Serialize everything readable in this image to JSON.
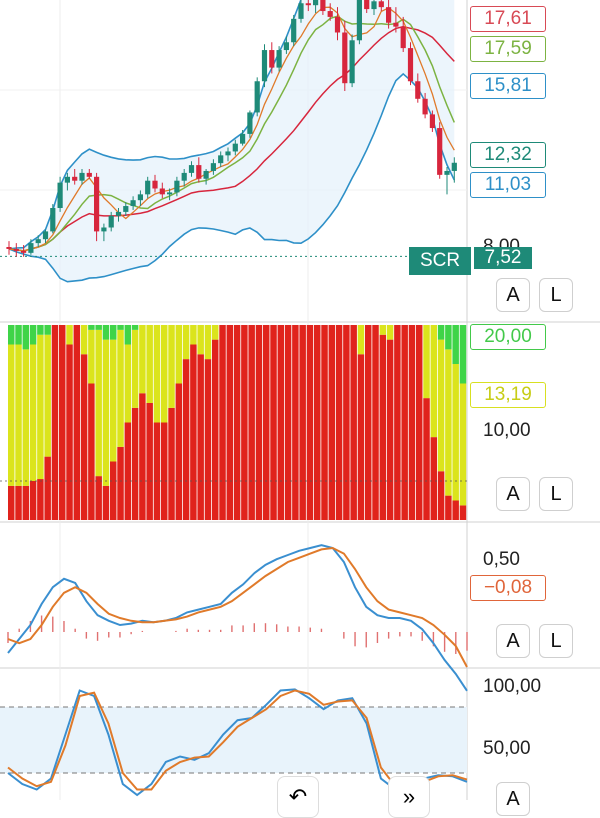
{
  "chart_data": [
    {
      "type": "candlestick",
      "title": "",
      "price_tags": [
        {
          "name": "tag-1761",
          "value": "17,61",
          "color": "#d84a55"
        },
        {
          "name": "tag-1759",
          "value": "17,59",
          "color": "#7cb342"
        },
        {
          "name": "tag-1581",
          "value": "15,81",
          "color": "#2e90c8"
        },
        {
          "name": "tag-1232",
          "value": "12,32",
          "color": "#1e8a78"
        },
        {
          "name": "tag-1103",
          "value": "11,03",
          "color": "#2e90c8"
        }
      ],
      "axis_tick_partial": "8,00",
      "scr_label": "SCR",
      "scr_value": "7,52",
      "last_close": 12.32,
      "candles": [
        {
          "o": 8.0,
          "h": 8.3,
          "l": 7.6,
          "c": 7.9
        },
        {
          "o": 7.9,
          "h": 8.2,
          "l": 7.5,
          "c": 7.8
        },
        {
          "o": 7.8,
          "h": 8.1,
          "l": 7.5,
          "c": 7.7
        },
        {
          "o": 7.7,
          "h": 8.4,
          "l": 7.6,
          "c": 8.2
        },
        {
          "o": 8.2,
          "h": 8.6,
          "l": 8.0,
          "c": 8.4
        },
        {
          "o": 8.4,
          "h": 8.9,
          "l": 8.2,
          "c": 8.8
        },
        {
          "o": 8.8,
          "h": 10.2,
          "l": 8.7,
          "c": 10.0
        },
        {
          "o": 10.0,
          "h": 11.6,
          "l": 9.8,
          "c": 11.3
        },
        {
          "o": 11.3,
          "h": 11.8,
          "l": 10.9,
          "c": 11.6
        },
        {
          "o": 11.6,
          "h": 12.0,
          "l": 11.2,
          "c": 11.4
        },
        {
          "o": 11.4,
          "h": 12.0,
          "l": 11.2,
          "c": 11.8
        },
        {
          "o": 11.8,
          "h": 12.0,
          "l": 11.5,
          "c": 11.6
        },
        {
          "o": 11.6,
          "h": 11.8,
          "l": 8.3,
          "c": 8.8
        },
        {
          "o": 8.8,
          "h": 9.2,
          "l": 8.3,
          "c": 9.0
        },
        {
          "o": 9.0,
          "h": 9.8,
          "l": 8.8,
          "c": 9.6
        },
        {
          "o": 9.6,
          "h": 10.0,
          "l": 9.3,
          "c": 9.8
        },
        {
          "o": 9.8,
          "h": 10.3,
          "l": 9.6,
          "c": 10.1
        },
        {
          "o": 10.1,
          "h": 10.6,
          "l": 9.9,
          "c": 10.4
        },
        {
          "o": 10.4,
          "h": 10.9,
          "l": 10.1,
          "c": 10.7
        },
        {
          "o": 10.7,
          "h": 11.6,
          "l": 10.5,
          "c": 11.4
        },
        {
          "o": 11.4,
          "h": 11.7,
          "l": 10.8,
          "c": 11.0
        },
        {
          "o": 11.0,
          "h": 11.3,
          "l": 10.5,
          "c": 10.7
        },
        {
          "o": 10.7,
          "h": 11.0,
          "l": 10.4,
          "c": 10.8
        },
        {
          "o": 10.8,
          "h": 11.6,
          "l": 10.6,
          "c": 11.4
        },
        {
          "o": 11.4,
          "h": 12.0,
          "l": 11.1,
          "c": 11.8
        },
        {
          "o": 11.8,
          "h": 12.4,
          "l": 11.6,
          "c": 12.2
        },
        {
          "o": 12.2,
          "h": 12.6,
          "l": 11.3,
          "c": 11.5
        },
        {
          "o": 11.5,
          "h": 12.0,
          "l": 11.2,
          "c": 11.9
        },
        {
          "o": 11.9,
          "h": 12.5,
          "l": 11.7,
          "c": 12.3
        },
        {
          "o": 12.3,
          "h": 12.9,
          "l": 12.1,
          "c": 12.7
        },
        {
          "o": 12.7,
          "h": 13.1,
          "l": 12.4,
          "c": 12.9
        },
        {
          "o": 12.9,
          "h": 13.5,
          "l": 12.7,
          "c": 13.3
        },
        {
          "o": 13.3,
          "h": 14.0,
          "l": 13.2,
          "c": 13.8
        },
        {
          "o": 13.8,
          "h": 15.0,
          "l": 13.6,
          "c": 14.9
        },
        {
          "o": 14.9,
          "h": 16.7,
          "l": 14.7,
          "c": 16.5
        },
        {
          "o": 16.5,
          "h": 18.4,
          "l": 16.2,
          "c": 18.1
        },
        {
          "o": 18.1,
          "h": 18.5,
          "l": 16.9,
          "c": 17.2
        },
        {
          "o": 17.2,
          "h": 18.3,
          "l": 17.0,
          "c": 18.1
        },
        {
          "o": 18.1,
          "h": 18.8,
          "l": 17.9,
          "c": 18.5
        },
        {
          "o": 18.5,
          "h": 19.9,
          "l": 18.3,
          "c": 19.7
        },
        {
          "o": 19.7,
          "h": 20.7,
          "l": 19.5,
          "c": 20.5
        },
        {
          "o": 20.5,
          "h": 20.8,
          "l": 20.1,
          "c": 20.4
        },
        {
          "o": 20.4,
          "h": 20.9,
          "l": 20.0,
          "c": 20.7
        },
        {
          "o": 20.7,
          "h": 20.9,
          "l": 19.9,
          "c": 20.1
        },
        {
          "o": 20.1,
          "h": 20.5,
          "l": 19.6,
          "c": 19.8
        },
        {
          "o": 19.8,
          "h": 20.3,
          "l": 18.6,
          "c": 19.0
        },
        {
          "o": 19.0,
          "h": 19.6,
          "l": 16.0,
          "c": 16.4
        },
        {
          "o": 16.4,
          "h": 18.9,
          "l": 16.2,
          "c": 18.6
        },
        {
          "o": 18.6,
          "h": 20.9,
          "l": 18.4,
          "c": 20.7
        },
        {
          "o": 20.7,
          "h": 20.9,
          "l": 20.0,
          "c": 20.2
        },
        {
          "o": 20.2,
          "h": 20.9,
          "l": 19.9,
          "c": 20.6
        },
        {
          "o": 20.6,
          "h": 20.8,
          "l": 20.1,
          "c": 20.3
        },
        {
          "o": 20.3,
          "h": 20.9,
          "l": 19.2,
          "c": 19.5
        },
        {
          "o": 19.5,
          "h": 20.3,
          "l": 19.0,
          "c": 19.3
        },
        {
          "o": 19.3,
          "h": 19.8,
          "l": 18.0,
          "c": 18.2
        },
        {
          "o": 18.2,
          "h": 18.5,
          "l": 16.3,
          "c": 16.5
        },
        {
          "o": 16.5,
          "h": 16.9,
          "l": 15.4,
          "c": 15.6
        },
        {
          "o": 15.6,
          "h": 15.9,
          "l": 14.6,
          "c": 14.8
        },
        {
          "o": 14.8,
          "h": 15.0,
          "l": 13.9,
          "c": 14.1
        },
        {
          "o": 14.1,
          "h": 14.4,
          "l": 11.5,
          "c": 11.7
        },
        {
          "o": 11.7,
          "h": 12.1,
          "l": 10.7,
          "c": 11.9
        },
        {
          "o": 11.9,
          "h": 12.6,
          "l": 11.3,
          "c": 12.32
        }
      ]
    },
    {
      "type": "stacked-bar",
      "tags": [
        {
          "name": "tag-2000",
          "value": "20,00",
          "color": "#43c94a"
        },
        {
          "name": "tag-1319",
          "value": "13,19",
          "color": "#d8e021"
        }
      ],
      "axis_label": "10,00",
      "series": [
        {
          "color": "#e0231c",
          "values": [
            3.5,
            3.5,
            3.5,
            4.0,
            4.2,
            6.5,
            20,
            20,
            18,
            20,
            17,
            14,
            4.5,
            3.5,
            6.0,
            7.5,
            10.0,
            11.5,
            13.0,
            12.0,
            10.0,
            10.0,
            11.5,
            14.0,
            16.5,
            18.0,
            17.0,
            16.5,
            18.5,
            20,
            20,
            20,
            20,
            20,
            20,
            20,
            20,
            20,
            20,
            20,
            20,
            20,
            20,
            20,
            20,
            20,
            20,
            20,
            17.0,
            20,
            20,
            19.0,
            18.5,
            20,
            20,
            20,
            20,
            12.5,
            8.5,
            5.0,
            2.5,
            2.0,
            1.5
          ]
        },
        {
          "color": "#dbe41c",
          "values": [
            14.5,
            14.5,
            14.0,
            14.0,
            14.8,
            12.5,
            0,
            0,
            2,
            0,
            3,
            5.5,
            15,
            15,
            12.5,
            12,
            8,
            8,
            7,
            8,
            10,
            10,
            8.5,
            6,
            3.5,
            2,
            3,
            3.5,
            1.5,
            0,
            0,
            0,
            0,
            0,
            0,
            0,
            0,
            0,
            0,
            0,
            0,
            0,
            0,
            0,
            0,
            0,
            0,
            0,
            3,
            0,
            0,
            1,
            1.5,
            0,
            0,
            0,
            0,
            7.5,
            11.5,
            13.5,
            15,
            14.0,
            12.5
          ]
        },
        {
          "color": "#3fd448",
          "values": [
            2,
            2,
            2.5,
            2,
            1,
            1,
            0,
            0,
            0,
            0,
            0,
            0.5,
            0.5,
            1.5,
            1.5,
            0.5,
            2,
            0.5,
            0,
            0,
            0,
            0,
            0,
            0,
            0,
            0,
            0,
            0,
            0,
            0,
            0,
            0,
            0,
            0,
            0,
            0,
            0,
            0,
            0,
            0,
            0,
            0,
            0,
            0,
            0,
            0,
            0,
            0,
            0,
            0,
            0,
            0,
            0,
            0,
            0,
            0,
            0,
            0,
            0,
            1.5,
            2.5,
            4,
            6
          ]
        }
      ]
    },
    {
      "type": "line",
      "tags": [
        {
          "name": "tag-m008",
          "value": "−0,08",
          "color": "#e0653a"
        }
      ],
      "axis_label": "0,50",
      "series": [
        {
          "color": "#3a8fd0",
          "values": [
            -0.15,
            -0.05,
            0.05,
            0.2,
            0.32,
            0.38,
            0.35,
            0.22,
            0.12,
            0.08,
            0.05,
            0.06,
            0.08,
            0.07,
            0.08,
            0.1,
            0.14,
            0.16,
            0.18,
            0.2,
            0.28,
            0.34,
            0.42,
            0.48,
            0.52,
            0.55,
            0.58,
            0.6,
            0.62,
            0.6,
            0.5,
            0.32,
            0.18,
            0.12,
            0.1,
            0.1,
            0.08,
            0.02,
            -0.08,
            -0.2,
            -0.3,
            -0.42
          ]
        },
        {
          "color": "#e07a2a",
          "values": [
            -0.05,
            -0.08,
            -0.05,
            0.05,
            0.18,
            0.28,
            0.32,
            0.28,
            0.2,
            0.13,
            0.1,
            0.08,
            0.07,
            0.07,
            0.08,
            0.09,
            0.11,
            0.14,
            0.16,
            0.18,
            0.22,
            0.28,
            0.34,
            0.4,
            0.45,
            0.5,
            0.53,
            0.56,
            0.59,
            0.6,
            0.56,
            0.45,
            0.32,
            0.22,
            0.16,
            0.14,
            0.12,
            0.1,
            0.05,
            -0.02,
            -0.1,
            -0.25
          ]
        }
      ],
      "histogram": [
        -0.1,
        0.03,
        0.1,
        0.15,
        0.14,
        0.1,
        0.03,
        -0.06,
        -0.08,
        -0.05,
        -0.05,
        -0.02,
        0.01,
        0,
        0,
        0.01,
        0.03,
        0.02,
        0.02,
        0.02,
        0.06,
        0.06,
        0.08,
        0.08,
        0.07,
        0.05,
        0.05,
        0.04,
        0.03,
        0,
        -0.06,
        -0.13,
        -0.14,
        -0.1,
        -0.06,
        -0.04,
        -0.04,
        -0.08,
        -0.13,
        -0.18,
        -0.2,
        -0.17
      ]
    },
    {
      "type": "line",
      "axis_label_top": "100,00",
      "axis_label_mid": "50,00",
      "levels": [
        80,
        20
      ],
      "series": [
        {
          "color": "#3a8fd0",
          "values": [
            20,
            10,
            5,
            15,
            55,
            95,
            90,
            55,
            10,
            0,
            10,
            30,
            35,
            32,
            38,
            55,
            68,
            70,
            82,
            95,
            96,
            88,
            78,
            86,
            88,
            65,
            15,
            5,
            10,
            15,
            18,
            17,
            12
          ]
        },
        {
          "color": "#e07a2a",
          "values": [
            25,
            15,
            8,
            12,
            45,
            90,
            93,
            65,
            20,
            5,
            5,
            22,
            30,
            34,
            35,
            48,
            62,
            70,
            78,
            90,
            95,
            92,
            82,
            85,
            86,
            70,
            25,
            8,
            8,
            12,
            17,
            18,
            14
          ]
        }
      ]
    }
  ],
  "buttons": {
    "a": "A",
    "l": "L"
  },
  "bottom_icons": {
    "undo": "↶",
    "collapse": "»"
  }
}
